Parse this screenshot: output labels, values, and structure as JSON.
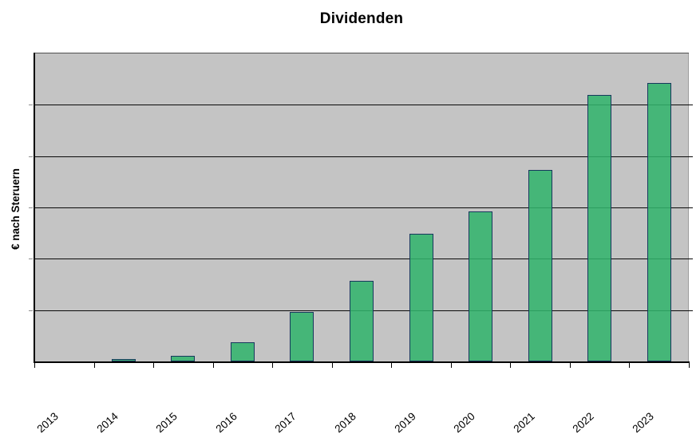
{
  "chart": {
    "title": "Dividenden",
    "y_axis_label": "€ nach Steruern",
    "colors": {
      "page_background": "#ffffff",
      "plot_background": "#c4c4c4",
      "bar_fill": "#31b36c",
      "bar_fill_opacity": 0.87,
      "bar_border": "#17375d",
      "gridline": "#0a0a0a",
      "axis": "#000000",
      "y_tick": "#8e8e8e",
      "text": "#000000"
    }
  },
  "chart_data": {
    "type": "bar",
    "title": "Dividenden",
    "xlabel": "",
    "ylabel": "€ nach Steruern",
    "categories": [
      "2013",
      "2014",
      "2015",
      "2016",
      "2017",
      "2018",
      "2019",
      "2020",
      "2021",
      "2022",
      "2023"
    ],
    "values": [
      0,
      0.05,
      0.11,
      0.38,
      0.96,
      1.57,
      2.48,
      2.93,
      3.73,
      5.19,
      5.42
    ],
    "value_units": "gridline intervals (y-axis has no numeric tick labels; values estimated relative to horizontal gridlines)",
    "ylim": [
      0,
      6
    ],
    "gridline_count": 6,
    "grid": true,
    "legend": false,
    "plot_background": "gray",
    "x_tick_label_rotation_deg": 45,
    "series_color": "green"
  }
}
